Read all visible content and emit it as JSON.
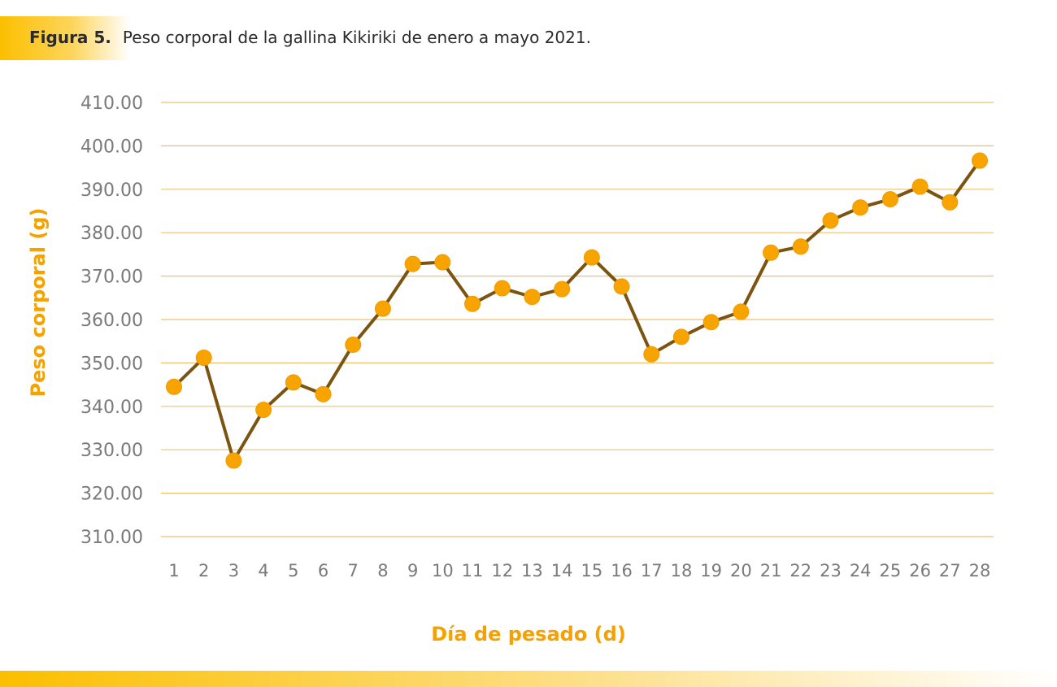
{
  "caption": {
    "label": "Figura 5.",
    "text": "Peso corporal de la gallina Kikiriki de enero a mayo 2021."
  },
  "colors": {
    "line": "#7a5410",
    "marker": "#f7a400",
    "grid": "#f0c070",
    "accent": "#fbbf00"
  },
  "chart_data": {
    "type": "line",
    "title": "",
    "xlabel": "Día de pesado (d)",
    "ylabel": "Peso corporal (g)",
    "categories": [
      "1",
      "2",
      "3",
      "4",
      "5",
      "6",
      "7",
      "8",
      "9",
      "10",
      "11",
      "12",
      "13",
      "14",
      "15",
      "16",
      "17",
      "18",
      "19",
      "20",
      "21",
      "22",
      "23",
      "24",
      "25",
      "26",
      "27",
      "28"
    ],
    "yticks": [
      "410.00",
      "400.00",
      "390.00",
      "380.00",
      "370.00",
      "360.00",
      "350.00",
      "340.00",
      "330.00",
      "320.00",
      "310.00"
    ],
    "ylim": [
      310,
      410
    ],
    "grid": true,
    "legend": "none",
    "series": [
      {
        "values": [
          344.5,
          351.2,
          327.5,
          339.2,
          345.5,
          342.8,
          354.2,
          362.5,
          372.8,
          373.2,
          363.6,
          367.2,
          365.2,
          367.0,
          374.3,
          367.6,
          352.0,
          356.0,
          359.4,
          361.8,
          375.4,
          376.8,
          382.8,
          385.8,
          387.7,
          390.6,
          387.0,
          396.6
        ]
      }
    ]
  }
}
